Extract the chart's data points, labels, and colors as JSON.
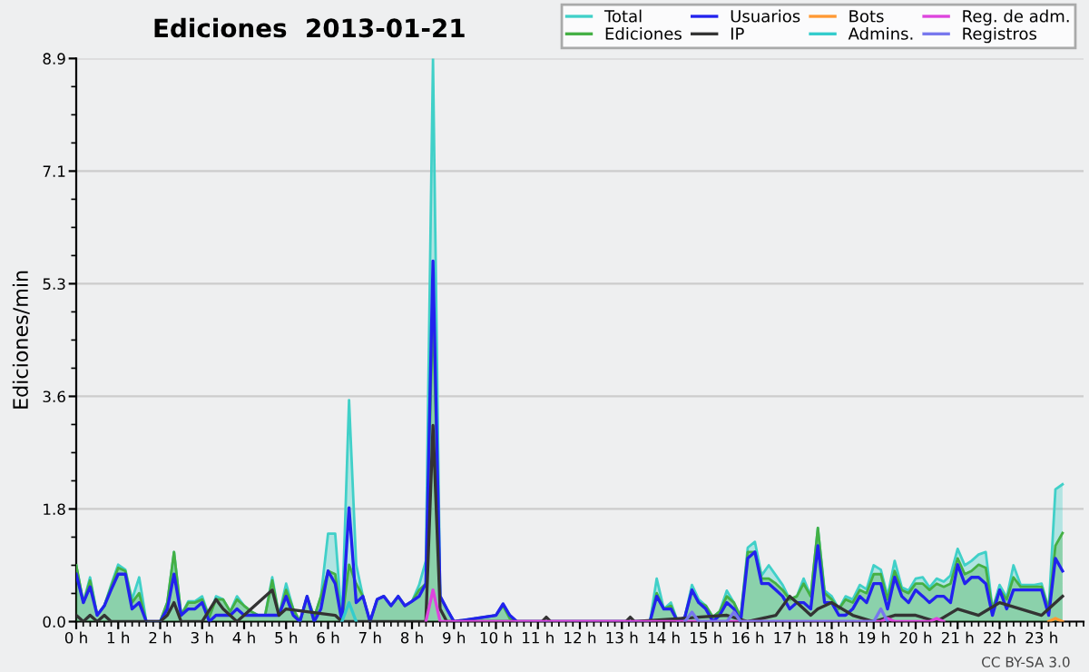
{
  "chart_data": {
    "type": "area",
    "title": "Ediciones  2013-01-21",
    "ylabel": "Ediciones/min",
    "annotations": [
      "CC BY-SA 3.0"
    ],
    "xlim": [
      0,
      24
    ],
    "ylim": [
      0,
      8.9
    ],
    "xticks": [
      {
        "value": 0,
        "label": "0 h"
      },
      {
        "value": 1,
        "label": "1 h"
      },
      {
        "value": 2,
        "label": "2 h"
      },
      {
        "value": 3,
        "label": "3 h"
      },
      {
        "value": 4,
        "label": "4 h"
      },
      {
        "value": 5,
        "label": "5 h"
      },
      {
        "value": 6,
        "label": "6 h"
      },
      {
        "value": 7,
        "label": "7 h"
      },
      {
        "value": 8,
        "label": "8 h"
      },
      {
        "value": 9,
        "label": "9 h"
      },
      {
        "value": 10,
        "label": "10 h"
      },
      {
        "value": 11,
        "label": "11 h"
      },
      {
        "value": 12,
        "label": "12 h"
      },
      {
        "value": 13,
        "label": "13 h"
      },
      {
        "value": 14,
        "label": "14 h"
      },
      {
        "value": 15,
        "label": "15 h"
      },
      {
        "value": 16,
        "label": "16 h"
      },
      {
        "value": 17,
        "label": "17 h"
      },
      {
        "value": 18,
        "label": "18 h"
      },
      {
        "value": 19,
        "label": "19 h"
      },
      {
        "value": 20,
        "label": "20 h"
      },
      {
        "value": 21,
        "label": "21 h"
      },
      {
        "value": 22,
        "label": "22 h"
      },
      {
        "value": 23,
        "label": "23 h"
      }
    ],
    "yticks": [
      {
        "value": 0,
        "label": "0.0"
      },
      {
        "value": 1.78,
        "label": "1.8"
      },
      {
        "value": 3.56,
        "label": "3.6"
      },
      {
        "value": 5.34,
        "label": "5.3"
      },
      {
        "value": 7.12,
        "label": "7.1"
      },
      {
        "value": 8.9,
        "label": "8.9"
      }
    ],
    "grid": "y",
    "legend": "top right",
    "marker": "none",
    "line_style": "solid",
    "x": [
      0,
      0.17,
      0.33,
      0.5,
      0.67,
      0.83,
      1,
      1.17,
      1.33,
      1.5,
      1.67,
      2,
      2.17,
      2.33,
      2.5,
      2.67,
      2.83,
      3,
      3.17,
      3.33,
      3.5,
      3.67,
      3.83,
      4,
      4.17,
      4.33,
      4.5,
      4.67,
      4.83,
      5,
      5.17,
      5.33,
      5.5,
      5.67,
      5.83,
      6,
      6.17,
      6.33,
      6.5,
      6.67,
      6.83,
      7,
      7.17,
      7.33,
      7.5,
      7.67,
      7.83,
      8,
      8.17,
      8.33,
      8.5,
      8.67,
      8.83,
      9,
      10,
      10.17,
      10.33,
      10.5,
      13.67,
      13.83,
      14,
      14.17,
      14.33,
      14.5,
      14.67,
      14.83,
      15,
      15.17,
      15.33,
      15.5,
      15.67,
      15.83,
      16,
      16.17,
      16.33,
      16.5,
      16.67,
      16.83,
      17,
      17.17,
      17.33,
      17.5,
      17.67,
      17.83,
      18,
      18.17,
      18.33,
      18.5,
      18.67,
      18.83,
      19,
      19.17,
      19.33,
      19.5,
      19.67,
      19.83,
      20,
      20.17,
      20.33,
      20.5,
      20.67,
      20.83,
      21,
      21.17,
      21.33,
      21.5,
      21.67,
      21.83,
      22,
      22.17,
      22.33,
      22.5,
      22.67,
      22.83,
      23,
      23.17,
      23.33,
      23.5
    ],
    "series": [
      {
        "name": "Total",
        "color": "#40d0c8",
        "values": [
          0.89,
          0.3,
          0.7,
          0.1,
          0.25,
          0.58,
          0.9,
          0.82,
          0.35,
          0.7,
          0,
          0,
          0.3,
          1.1,
          0.1,
          0.32,
          0.32,
          0.4,
          0.07,
          0.4,
          0.35,
          0.16,
          0.4,
          0.25,
          0.16,
          0.1,
          0.1,
          0.7,
          0.1,
          0.6,
          0.2,
          0,
          0.4,
          0.07,
          0.4,
          1.39,
          1.39,
          0,
          3.5,
          0.9,
          0.4,
          0,
          0.35,
          0.4,
          0.25,
          0.4,
          0.25,
          0.32,
          0.58,
          0.96,
          8.9,
          0.4,
          0.2,
          0,
          0.1,
          0.28,
          0.1,
          0,
          0,
          0.68,
          0.2,
          0.3,
          0,
          0.07,
          0.58,
          0.35,
          0.25,
          0.07,
          0.16,
          0.49,
          0.3,
          0.07,
          1.17,
          1.26,
          0.73,
          0.89,
          0.73,
          0.58,
          0.35,
          0.4,
          0.68,
          0.4,
          1.48,
          0.49,
          0.4,
          0.2,
          0.4,
          0.35,
          0.58,
          0.51,
          0.89,
          0.82,
          0.4,
          0.96,
          0.54,
          0.49,
          0.68,
          0.7,
          0.54,
          0.68,
          0.63,
          0.73,
          1.15,
          0.89,
          0.96,
          1.06,
          1.1,
          0.2,
          0.58,
          0.38,
          0.89,
          0.58,
          0.58,
          0.58,
          0.6,
          0.2,
          2.09,
          2.17
        ]
      },
      {
        "name": "Ediciones",
        "color": "#44b044",
        "values": [
          0.89,
          0.3,
          0.65,
          0.1,
          0.25,
          0.55,
          0.85,
          0.8,
          0.3,
          0.45,
          0,
          0,
          0.3,
          1.1,
          0.1,
          0.3,
          0.3,
          0.35,
          0.07,
          0.35,
          0.35,
          0.16,
          0.35,
          0.25,
          0.16,
          0.1,
          0.1,
          0.65,
          0.1,
          0.5,
          0.2,
          0,
          0.4,
          0.07,
          0.4,
          0.8,
          0.75,
          0,
          0.9,
          0.6,
          0.4,
          0,
          0.35,
          0.4,
          0.25,
          0.4,
          0.25,
          0.32,
          0.5,
          0.6,
          5.0,
          0.4,
          0.2,
          0,
          0.1,
          0.25,
          0.05,
          0,
          0,
          0.45,
          0.2,
          0.25,
          0,
          0.07,
          0.5,
          0.3,
          0.25,
          0.07,
          0.16,
          0.4,
          0.3,
          0.07,
          1.1,
          1.1,
          0.68,
          0.68,
          0.6,
          0.5,
          0.35,
          0.4,
          0.6,
          0.4,
          1.48,
          0.45,
          0.35,
          0.2,
          0.35,
          0.3,
          0.5,
          0.45,
          0.75,
          0.75,
          0.35,
          0.8,
          0.5,
          0.45,
          0.6,
          0.6,
          0.5,
          0.6,
          0.55,
          0.6,
          1.0,
          0.75,
          0.8,
          0.9,
          0.85,
          0.2,
          0.5,
          0.35,
          0.7,
          0.55,
          0.55,
          0.55,
          0.55,
          0.2,
          1.2,
          1.4
        ]
      },
      {
        "name": "Usuarios",
        "type": "line",
        "color": "#2222ee",
        "values": [
          0.75,
          0.3,
          0.55,
          0.1,
          0.25,
          0.5,
          0.75,
          0.75,
          0.2,
          0.3,
          0,
          0,
          0.2,
          0.75,
          0.1,
          0.2,
          0.2,
          0.3,
          0,
          0.1,
          0.1,
          0.1,
          0.2,
          0.1,
          0.1,
          0.1,
          0.1,
          0.1,
          0.1,
          0.4,
          0.1,
          0,
          0.4,
          0,
          0.2,
          0.8,
          0.6,
          0,
          1.8,
          0.3,
          0.4,
          0,
          0.35,
          0.4,
          0.25,
          0.4,
          0.25,
          0.32,
          0.4,
          0.6,
          5.7,
          0.4,
          0.2,
          0,
          0.1,
          0.28,
          0.1,
          0,
          0,
          0.4,
          0.2,
          0.2,
          0,
          0.07,
          0.5,
          0.3,
          0.2,
          0,
          0.1,
          0.3,
          0.2,
          0,
          1.0,
          1.1,
          0.6,
          0.6,
          0.5,
          0.4,
          0.2,
          0.3,
          0.3,
          0.2,
          1.2,
          0.3,
          0.3,
          0.1,
          0.1,
          0.2,
          0.4,
          0.3,
          0.6,
          0.6,
          0.2,
          0.7,
          0.4,
          0.3,
          0.5,
          0.4,
          0.3,
          0.4,
          0.4,
          0.3,
          0.9,
          0.6,
          0.7,
          0.7,
          0.6,
          0.1,
          0.5,
          0.2,
          0.5,
          0.5,
          0.5,
          0.5,
          0.5,
          0.1,
          1.0,
          0.8
        ]
      },
      {
        "name": "IP",
        "type": "line",
        "color": "#333333",
        "x": [
          0,
          0.17,
          0.33,
          0.5,
          0.67,
          0.83,
          1,
          2,
          2.17,
          2.33,
          2.5,
          3,
          3.33,
          3.5,
          3.83,
          4.67,
          4.83,
          5,
          6.17,
          6.33,
          6.5,
          8.33,
          8.5,
          8.67,
          8.83,
          11.1,
          11.2,
          11.3,
          13.1,
          13.2,
          13.3,
          15.5,
          16,
          16.67,
          17,
          17.17,
          17.5,
          17.67,
          18,
          18.5,
          19,
          19.5,
          20,
          20.5,
          21,
          21.5,
          22,
          22.5,
          23,
          23.5
        ],
        "values": [
          0.1,
          0,
          0.1,
          0,
          0.1,
          0,
          0,
          0,
          0.1,
          0.3,
          0,
          0,
          0.35,
          0.2,
          0,
          0.5,
          0.1,
          0.2,
          0.1,
          0,
          0,
          0,
          3.1,
          0.2,
          0,
          0,
          0.07,
          0,
          0,
          0.07,
          0,
          0.1,
          0,
          0.1,
          0.4,
          0.3,
          0.1,
          0.2,
          0.3,
          0.1,
          0,
          0.1,
          0.1,
          0,
          0.2,
          0.1,
          0.3,
          0.2,
          0.1,
          0.4
        ]
      },
      {
        "name": "Bots",
        "type": "line",
        "color": "#ff9933",
        "x": [
          23.17,
          23.33,
          23.5
        ],
        "values": [
          0,
          0.05,
          0
        ]
      },
      {
        "name": "Admins.",
        "type": "line",
        "color": "#33cccc",
        "x": [
          6.33,
          6.5,
          6.67
        ],
        "values": [
          0,
          0.3,
          0
        ]
      },
      {
        "name": "Reg. de adm.",
        "type": "line",
        "color": "#dd44dd",
        "x": [
          8.33,
          8.5,
          8.67,
          19.17,
          19.33,
          19.5,
          20.33,
          20.5,
          20.67
        ],
        "values": [
          0,
          0.5,
          0,
          0,
          0.05,
          0,
          0,
          0.05,
          0
        ]
      },
      {
        "name": "Registros",
        "type": "line",
        "color": "#7777ee",
        "x": [
          14.5,
          14.67,
          14.83,
          15.5,
          15.67,
          15.83,
          19,
          19.17,
          19.33
        ],
        "values": [
          0,
          0.15,
          0,
          0,
          0.15,
          0,
          0,
          0.2,
          0
        ]
      }
    ]
  }
}
